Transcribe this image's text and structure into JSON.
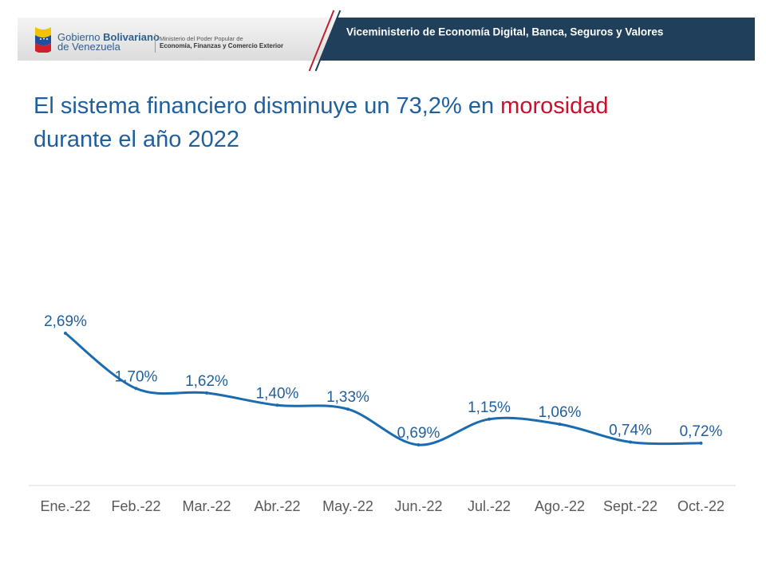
{
  "header": {
    "gov_name_bold": "Bolivariano",
    "gov_name_prefix": "Gobierno",
    "gov_name_line2": "de Venezuela",
    "ministry_line1": "Ministerio del Poder Popular de",
    "ministry_line2": "Economía, Finanzas y Comercio Exterior",
    "banner_title": "Viceministerio de Economía Digital, Banca, Seguros y Valores"
  },
  "headline": {
    "part1": "El sistema financiero disminuye un ",
    "highlight_value": "73,2%",
    "part2": " en ",
    "highlight_word": "morosidad",
    "line2": "durante el año 2022"
  },
  "colors": {
    "line": "#1b6bb0",
    "banner_dark": "#1f3f5a",
    "accent_red": "#c8102e",
    "axis_text": "#595959",
    "label_text": "#1f5f9e"
  },
  "chart_data": {
    "type": "line",
    "title": "",
    "xlabel": "",
    "ylabel": "",
    "categories": [
      "Ene.-22",
      "Feb.-22",
      "Mar.-22",
      "Abr.-22",
      "May.-22",
      "Jun.-22",
      "Jul.-22",
      "Ago.-22",
      "Sept.-22",
      "Oct.-22"
    ],
    "values": [
      2.69,
      1.7,
      1.62,
      1.4,
      1.33,
      0.69,
      1.15,
      1.06,
      0.74,
      0.72
    ],
    "data_labels": [
      "2,69%",
      "1,70%",
      "1,62%",
      "1,40%",
      "1,33%",
      "0,69%",
      "1,15%",
      "1,06%",
      "0,74%",
      "0,72%"
    ],
    "ylim": [
      0,
      3
    ],
    "smooth": true,
    "grid": false,
    "legend": "none"
  }
}
